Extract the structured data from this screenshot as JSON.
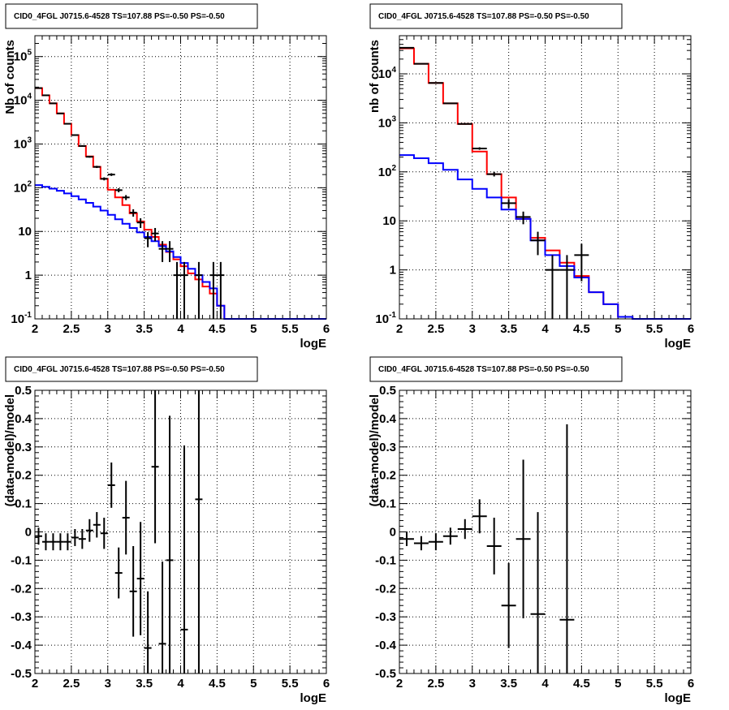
{
  "chart_data": [
    {
      "type": "histogram",
      "title": "CID0_4FGL J0715.6-4528 TS=107.88 PS=-0.50 PS=-0.50",
      "xlabel": "logE",
      "ylabel": "Nb of counts",
      "xlim": [
        2,
        6
      ],
      "ylim": [
        0.1,
        300000
      ],
      "yscale": "log",
      "grid": true,
      "x_ticks": [
        "2",
        "2.5",
        "3",
        "3.5",
        "4",
        "4.5",
        "5",
        "5.5",
        "6"
      ],
      "y_ticks": [
        {
          "v": 0.1,
          "label": "10^-1"
        },
        {
          "v": 1,
          "label": "1"
        },
        {
          "v": 10,
          "label": "10"
        },
        {
          "v": 100,
          "label": "10^2"
        },
        {
          "v": 1000,
          "label": "10^3"
        },
        {
          "v": 10000,
          "label": "10^4"
        },
        {
          "v": 100000,
          "label": "10^5"
        }
      ],
      "bin_width": 0.1,
      "x": [
        2.05,
        2.15,
        2.25,
        2.35,
        2.45,
        2.55,
        2.65,
        2.75,
        2.85,
        2.95,
        3.05,
        3.15,
        3.25,
        3.35,
        3.45,
        3.55,
        3.65,
        3.75,
        3.85,
        3.95,
        4.05,
        4.15,
        4.25,
        4.35,
        4.45,
        4.55,
        4.65,
        4.75,
        4.85,
        4.95,
        5.05,
        5.15,
        5.25,
        5.35,
        5.45,
        5.55,
        5.65,
        5.75,
        5.85,
        5.95
      ],
      "series": [
        {
          "color": "#ff0000",
          "values": [
            19000,
            13000,
            8500,
            5000,
            2900,
            1600,
            900,
            520,
            300,
            160,
            90,
            60,
            40,
            26,
            17,
            11,
            7.5,
            5,
            3.4,
            2.3,
            1.6,
            1.1,
            0.8,
            0.55,
            0.38,
            0.2,
            0.1,
            0.1,
            0.1,
            0.1,
            0.1,
            0.1,
            0.1,
            0.1,
            0.1,
            0.1,
            0.1,
            0.1,
            0.1,
            0.1
          ]
        },
        {
          "color": "#0000ff",
          "values": [
            115,
            105,
            95,
            85,
            74,
            64,
            54,
            45,
            37,
            30,
            24,
            19,
            15,
            12,
            9.5,
            7.5,
            6,
            4.6,
            3.5,
            2.6,
            1.9,
            1.4,
            1.0,
            0.7,
            0.5,
            0.2,
            0.1,
            0.1,
            0.1,
            0.1,
            0.1,
            0.1,
            0.1,
            0.1,
            0.1,
            0.1,
            0.1,
            0.1,
            0.1,
            0.1
          ]
        }
      ],
      "data_points": [
        {
          "x": 2.05,
          "y": 19000
        },
        {
          "x": 2.15,
          "y": 13000
        },
        {
          "x": 2.25,
          "y": 8500
        },
        {
          "x": 2.35,
          "y": 5000
        },
        {
          "x": 2.45,
          "y": 2900
        },
        {
          "x": 2.55,
          "y": 1600
        },
        {
          "x": 2.65,
          "y": 900
        },
        {
          "x": 2.75,
          "y": 510
        },
        {
          "x": 2.85,
          "y": 300
        },
        {
          "x": 2.95,
          "y": 160
        },
        {
          "x": 3.05,
          "y": 200
        },
        {
          "x": 3.15,
          "y": 88
        },
        {
          "x": 3.25,
          "y": 60
        },
        {
          "x": 3.35,
          "y": 27
        },
        {
          "x": 3.45,
          "y": 16
        },
        {
          "x": 3.55,
          "y": 7
        },
        {
          "x": 3.65,
          "y": 9
        },
        {
          "x": 3.75,
          "y": 4
        },
        {
          "x": 3.85,
          "y": 4
        },
        {
          "x": 3.95,
          "y": 1
        },
        {
          "x": 4.05,
          "y": 1
        },
        {
          "x": 4.25,
          "y": 1
        },
        {
          "x": 4.45,
          "y": 1
        },
        {
          "x": 4.55,
          "y": 1
        }
      ]
    },
    {
      "type": "histogram",
      "title": "CID0_4FGL J0715.6-4528 TS=107.88 PS=-0.50 PS=-0.50",
      "xlabel": "logE",
      "ylabel": "nb of counts",
      "xlim": [
        2,
        6
      ],
      "ylim": [
        0.1,
        60000
      ],
      "yscale": "log",
      "grid": true,
      "x_ticks": [
        "2",
        "2.5",
        "3",
        "3.5",
        "4",
        "4.5",
        "5",
        "5.5",
        "6"
      ],
      "y_ticks": [
        {
          "v": 0.1,
          "label": "10^-1"
        },
        {
          "v": 1,
          "label": "1"
        },
        {
          "v": 10,
          "label": "10"
        },
        {
          "v": 100,
          "label": "10^2"
        },
        {
          "v": 1000,
          "label": "10^3"
        },
        {
          "v": 10000,
          "label": "10^4"
        }
      ],
      "bin_width": 0.2,
      "x": [
        2.1,
        2.3,
        2.5,
        2.7,
        2.9,
        3.1,
        3.3,
        3.5,
        3.7,
        3.9,
        4.1,
        4.3,
        4.5,
        4.7,
        4.9,
        5.1,
        5.3,
        5.5,
        5.7,
        5.9
      ],
      "series": [
        {
          "color": "#ff0000",
          "values": [
            33000,
            16000,
            6500,
            2500,
            950,
            260,
            90,
            30,
            11,
            4.5,
            2.5,
            1.4,
            0.75,
            0.35,
            0.2,
            0.11,
            0.1,
            0.1,
            0.1,
            0.1
          ]
        },
        {
          "color": "#0000ff",
          "values": [
            220,
            190,
            150,
            110,
            70,
            45,
            30,
            17,
            11,
            4,
            2,
            1.2,
            0.7,
            0.35,
            0.2,
            0.11,
            0.1,
            0.1,
            0.1,
            0.1
          ]
        }
      ],
      "data_points": [
        {
          "x": 2.1,
          "y": 34000
        },
        {
          "x": 2.3,
          "y": 16000
        },
        {
          "x": 2.5,
          "y": 6500
        },
        {
          "x": 2.7,
          "y": 2500
        },
        {
          "x": 2.9,
          "y": 950
        },
        {
          "x": 3.1,
          "y": 300
        },
        {
          "x": 3.3,
          "y": 90
        },
        {
          "x": 3.5,
          "y": 23
        },
        {
          "x": 3.7,
          "y": 12
        },
        {
          "x": 3.9,
          "y": 4
        },
        {
          "x": 4.1,
          "y": 1
        },
        {
          "x": 4.3,
          "y": 1
        },
        {
          "x": 4.5,
          "y": 2
        }
      ]
    },
    {
      "type": "scatter",
      "title": "CID0_4FGL J0715.6-4528 TS=107.88 PS=-0.50 PS=-0.50",
      "xlabel": "logE",
      "ylabel": "(data-model)/model",
      "xlim": [
        2,
        6
      ],
      "ylim": [
        -0.5,
        0.5
      ],
      "yscale": "linear",
      "grid": true,
      "x_ticks": [
        "2",
        "2.5",
        "3",
        "3.5",
        "4",
        "4.5",
        "5",
        "5.5",
        "6"
      ],
      "y_ticks": [
        {
          "v": -0.5,
          "label": "-0.5"
        },
        {
          "v": -0.4,
          "label": "-0.4"
        },
        {
          "v": -0.3,
          "label": "-0.3"
        },
        {
          "v": -0.2,
          "label": "-0.2"
        },
        {
          "v": -0.1,
          "label": "-0.1"
        },
        {
          "v": 0,
          "label": "0"
        },
        {
          "v": 0.1,
          "label": "0.1"
        },
        {
          "v": 0.2,
          "label": "0.2"
        },
        {
          "v": 0.3,
          "label": "0.3"
        },
        {
          "v": 0.4,
          "label": "0.4"
        },
        {
          "v": 0.5,
          "label": "0.5"
        }
      ],
      "bin_width": 0.1,
      "points": [
        {
          "x": 2.05,
          "y": -0.015,
          "err": 0.03
        },
        {
          "x": 2.15,
          "y": -0.035,
          "err": 0.03
        },
        {
          "x": 2.25,
          "y": -0.035,
          "err": 0.03
        },
        {
          "x": 2.35,
          "y": -0.035,
          "err": 0.03
        },
        {
          "x": 2.45,
          "y": -0.035,
          "err": 0.03
        },
        {
          "x": 2.55,
          "y": -0.02,
          "err": 0.03
        },
        {
          "x": 2.65,
          "y": -0.025,
          "err": 0.035
        },
        {
          "x": 2.75,
          "y": 0.005,
          "err": 0.04
        },
        {
          "x": 2.85,
          "y": 0.025,
          "err": 0.045
        },
        {
          "x": 2.95,
          "y": -0.005,
          "err": 0.055
        },
        {
          "x": 3.05,
          "y": 0.165,
          "err": 0.08
        },
        {
          "x": 3.15,
          "y": -0.145,
          "err": 0.09
        },
        {
          "x": 3.25,
          "y": 0.05,
          "err": 0.13
        },
        {
          "x": 3.35,
          "y": -0.21,
          "err": 0.16
        },
        {
          "x": 3.45,
          "y": -0.165,
          "err": 0.2
        },
        {
          "x": 3.55,
          "y": -0.41,
          "err": 0.2
        },
        {
          "x": 3.65,
          "y": 0.23,
          "err": 0.27
        },
        {
          "x": 3.75,
          "y": -0.395,
          "err": 0.29
        },
        {
          "x": 3.85,
          "y": -0.1,
          "err": 0.51
        },
        {
          "x": 4.05,
          "y": -0.345,
          "err": 0.65
        },
        {
          "x": 4.25,
          "y": 0.115,
          "err": 0.9
        }
      ]
    },
    {
      "type": "scatter",
      "title": "CID0_4FGL J0715.6-4528 TS=107.88 PS=-0.50 PS=-0.50",
      "xlabel": "logE",
      "ylabel": "(data-model)/model",
      "xlim": [
        2,
        6
      ],
      "ylim": [
        -0.5,
        0.5
      ],
      "yscale": "linear",
      "grid": true,
      "x_ticks": [
        "2",
        "2.5",
        "3",
        "3.5",
        "4",
        "4.5",
        "5",
        "5.5",
        "6"
      ],
      "y_ticks": [
        {
          "v": -0.5,
          "label": "-0.5"
        },
        {
          "v": -0.4,
          "label": "-0.4"
        },
        {
          "v": -0.3,
          "label": "-0.3"
        },
        {
          "v": -0.2,
          "label": "-0.2"
        },
        {
          "v": -0.1,
          "label": "-0.1"
        },
        {
          "v": 0,
          "label": "0"
        },
        {
          "v": 0.1,
          "label": "0.1"
        },
        {
          "v": 0.2,
          "label": "0.2"
        },
        {
          "v": 0.3,
          "label": "0.3"
        },
        {
          "v": 0.4,
          "label": "0.4"
        },
        {
          "v": 0.5,
          "label": "0.5"
        }
      ],
      "bin_width": 0.2,
      "points": [
        {
          "x": 2.1,
          "y": -0.025,
          "err": 0.025
        },
        {
          "x": 2.3,
          "y": -0.04,
          "err": 0.025
        },
        {
          "x": 2.5,
          "y": -0.035,
          "err": 0.03
        },
        {
          "x": 2.7,
          "y": -0.015,
          "err": 0.03
        },
        {
          "x": 2.9,
          "y": 0.01,
          "err": 0.035
        },
        {
          "x": 3.1,
          "y": 0.055,
          "err": 0.06
        },
        {
          "x": 3.3,
          "y": -0.05,
          "err": 0.1
        },
        {
          "x": 3.5,
          "y": -0.26,
          "err": 0.15
        },
        {
          "x": 3.7,
          "y": -0.025,
          "err": 0.28
        },
        {
          "x": 3.9,
          "y": -0.29,
          "err": 0.36
        },
        {
          "x": 4.3,
          "y": -0.31,
          "err": 0.69
        }
      ]
    }
  ]
}
